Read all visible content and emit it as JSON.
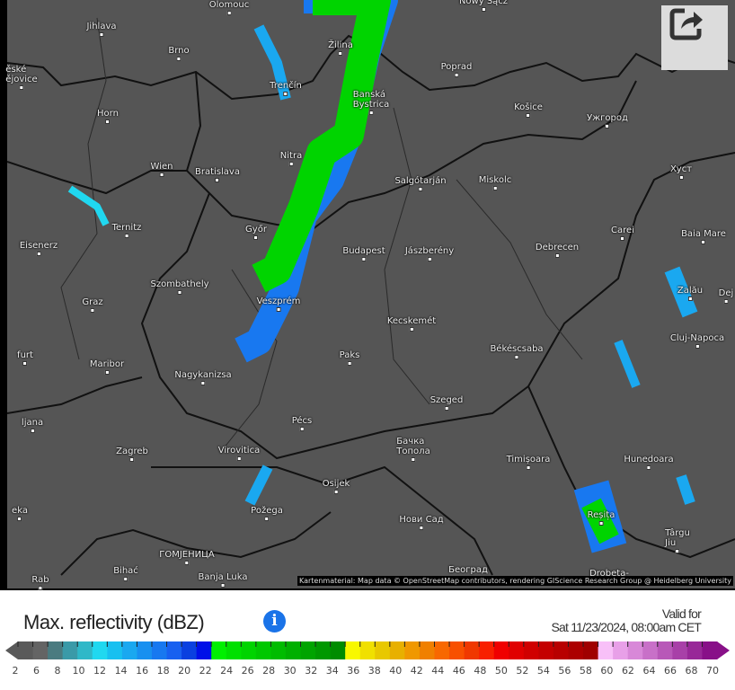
{
  "map": {
    "cities": [
      "Olomouc",
      "Nowy Sącz",
      "Jihlava",
      "Brno",
      "ěské\nějovice",
      "Žilina",
      "Poprad",
      "Trenčín",
      "Banská\nBystrica",
      "Košice",
      "Ужгород",
      "Horn",
      "Wien",
      "Bratislava",
      "Nitra",
      "Salgótarján",
      "Miskolc",
      "Хуст",
      "Ternitz",
      "Eisenerz",
      "Győr",
      "Budapest",
      "Jászberény",
      "Debrecen",
      "Carei",
      "Baia Mare",
      "Szombathely",
      "Zalău",
      "Dej",
      "Graz",
      "Veszprém",
      "Kecskemét",
      "Cluj-Napoca",
      "Békéscsaba",
      "furt",
      "Paks",
      "Maribor",
      "Nagykanizsa",
      "Szeged",
      "Pécs",
      "ljana",
      "Бачка\nТопола",
      "Zagreb",
      "Virovitica",
      "Timișoara",
      "Hunedoara",
      "Osijek",
      "Požega",
      "eka",
      "Нови Сад",
      "Reșița",
      "Târgu\nJiu",
      "ГОМЈЕНИЦА",
      "Bihać",
      "Banja Luka",
      "Rab",
      "Београд",
      "Drobeta-"
    ],
    "attribution": "Kartenmaterial: Map data © OpenStreetMap contributors, rendering GIScience Research Group @ Heidelberg University",
    "share_icon": "share-icon"
  },
  "legend": {
    "title": "Max. reflectivity (dBZ)",
    "info_icon": "i",
    "valid_label": "Valid for",
    "valid_time": "Sat 11/23/2024, 08:00am CET",
    "ticks": [
      "2",
      "6",
      "8",
      "10",
      "12",
      "14",
      "16",
      "18",
      "20",
      "22",
      "24",
      "26",
      "28",
      "30",
      "32",
      "34",
      "36",
      "38",
      "40",
      "42",
      "44",
      "46",
      "48",
      "50",
      "52",
      "54",
      "56",
      "58",
      "60",
      "62",
      "64",
      "66",
      "68",
      "70"
    ],
    "colors": [
      "#5a5a5a",
      "#646464",
      "#4a7b80",
      "#3a9aa8",
      "#2fb8c8",
      "#20d8f0",
      "#18c0f0",
      "#1aa8f0",
      "#1890f0",
      "#1878f0",
      "#1860f0",
      "#0a40e0",
      "#0010e8",
      "#00f000",
      "#00e000",
      "#00d400",
      "#00c800",
      "#00bc00",
      "#00b000",
      "#00a400",
      "#009800",
      "#008c00",
      "#f8f800",
      "#f0e000",
      "#e8c800",
      "#e8b000",
      "#f09800",
      "#f08000",
      "#f86800",
      "#f85000",
      "#f03800",
      "#f82000",
      "#f00000",
      "#e00000",
      "#d00000",
      "#c40000",
      "#b80000",
      "#ac0000",
      "#a00000",
      "#f8c0f8",
      "#e8a0e8",
      "#d888d8",
      "#c870c8",
      "#b858b8",
      "#a840a8",
      "#982898",
      "#881088"
    ]
  }
}
